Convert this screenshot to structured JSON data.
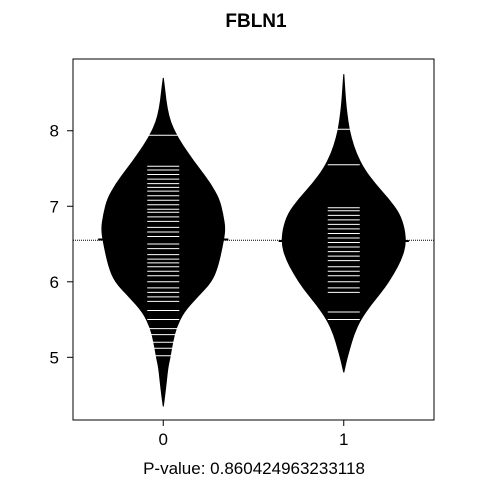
{
  "chart_data": {
    "type": "beanplot",
    "title": "FBLN1",
    "xlabel": "P-value: 0.860424963233118",
    "ylabel": "",
    "categories": [
      "0",
      "1"
    ],
    "x_tick_labels": [
      "0",
      "1"
    ],
    "y_ticks": [
      5,
      6,
      7,
      8
    ],
    "y_tick_labels": [
      "5",
      "6",
      "7",
      "8"
    ],
    "xlim": [
      -0.5,
      1.5
    ],
    "ylim": [
      4.17,
      8.95
    ],
    "overall_mean": 6.55,
    "grid": false,
    "legend": "none",
    "series": [
      {
        "name": "0",
        "mean": 6.56,
        "density": [
          [
            4.35,
            0.0
          ],
          [
            4.6,
            0.04
          ],
          [
            4.85,
            0.07
          ],
          [
            5.0,
            0.11
          ],
          [
            5.2,
            0.15
          ],
          [
            5.4,
            0.21
          ],
          [
            5.6,
            0.33
          ],
          [
            5.8,
            0.55
          ],
          [
            6.0,
            0.78
          ],
          [
            6.2,
            0.88
          ],
          [
            6.5,
            0.96
          ],
          [
            6.7,
            1.0
          ],
          [
            6.9,
            0.96
          ],
          [
            7.1,
            0.9
          ],
          [
            7.3,
            0.76
          ],
          [
            7.5,
            0.58
          ],
          [
            7.7,
            0.4
          ],
          [
            7.9,
            0.24
          ],
          [
            8.1,
            0.12
          ],
          [
            8.3,
            0.06
          ],
          [
            8.5,
            0.03
          ],
          [
            8.7,
            0.0
          ]
        ],
        "points": [
          5.02,
          5.12,
          5.2,
          5.3,
          5.38,
          5.5,
          5.62,
          5.74,
          5.8,
          5.86,
          5.92,
          6.0,
          6.08,
          6.14,
          6.2,
          6.25,
          6.3,
          6.36,
          6.44,
          6.5,
          6.56,
          6.6,
          6.66,
          6.72,
          6.8,
          6.86,
          6.92,
          6.96,
          7.02,
          7.08,
          7.14,
          7.2,
          7.25,
          7.3,
          7.36,
          7.42,
          7.48,
          7.53,
          7.94
        ]
      },
      {
        "name": "1",
        "mean": 6.54,
        "density": [
          [
            4.8,
            0.0
          ],
          [
            4.95,
            0.04
          ],
          [
            5.1,
            0.09
          ],
          [
            5.3,
            0.16
          ],
          [
            5.5,
            0.27
          ],
          [
            5.7,
            0.44
          ],
          [
            5.9,
            0.64
          ],
          [
            6.1,
            0.8
          ],
          [
            6.3,
            0.93
          ],
          [
            6.5,
            1.0
          ],
          [
            6.7,
            0.98
          ],
          [
            6.9,
            0.9
          ],
          [
            7.1,
            0.72
          ],
          [
            7.3,
            0.5
          ],
          [
            7.5,
            0.32
          ],
          [
            7.7,
            0.2
          ],
          [
            7.9,
            0.12
          ],
          [
            8.1,
            0.07
          ],
          [
            8.3,
            0.04
          ],
          [
            8.5,
            0.02
          ],
          [
            8.75,
            0.0
          ]
        ],
        "points": [
          5.5,
          5.6,
          5.86,
          5.92,
          6.0,
          6.08,
          6.14,
          6.2,
          6.28,
          6.34,
          6.4,
          6.46,
          6.52,
          6.58,
          6.64,
          6.7,
          6.76,
          6.82,
          6.88,
          6.94,
          6.98,
          7.55,
          8.02
        ]
      }
    ]
  }
}
